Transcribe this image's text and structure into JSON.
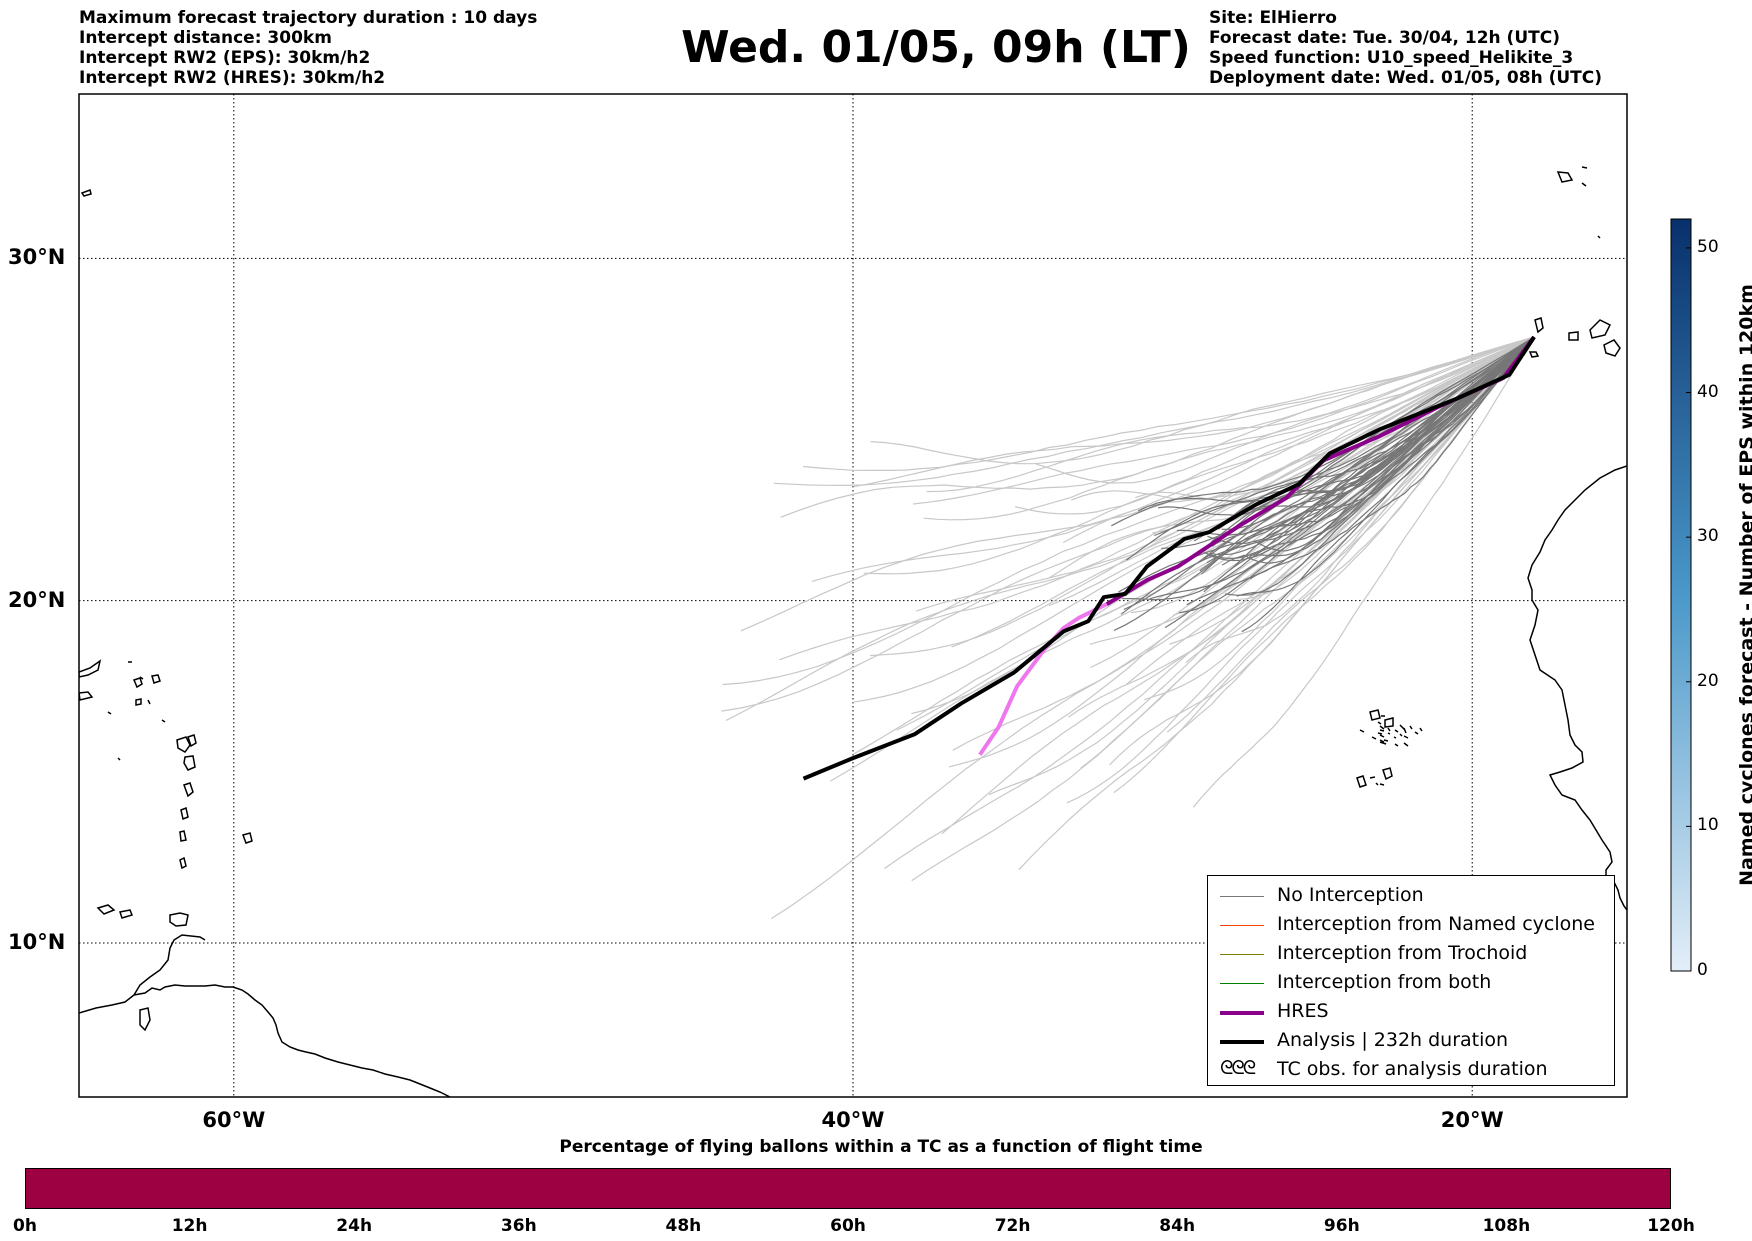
{
  "header": {
    "left": [
      "Maximum forecast trajectory duration : 10 days",
      "Intercept distance: 300km",
      "Intercept RW2 (EPS):  30km/h2",
      "Intercept RW2 (HRES): 30km/h2"
    ],
    "title": "Wed. 01/05, 09h (LT)",
    "right": [
      "Site: ElHierro",
      "Forecast date: Tue. 30/04, 12h (UTC)",
      "Speed function: U10_speed_Helikite_3",
      "Deployment date: Wed. 01/05, 08h (UTC)"
    ]
  },
  "map": {
    "lon_range": [
      -65,
      -15
    ],
    "lat_range": [
      5.5,
      34.8
    ],
    "lat_labels": [
      {
        "lat": 30,
        "label": "30°N"
      },
      {
        "lat": 20,
        "label": "20°N"
      },
      {
        "lat": 10,
        "label": "10°N"
      }
    ],
    "lon_labels": [
      {
        "lon": -60,
        "label": "60°W"
      },
      {
        "lon": -40,
        "label": "40°W"
      },
      {
        "lon": -20,
        "label": "20°W"
      }
    ],
    "launch_site": {
      "lon": -18.0,
      "lat": 27.7
    },
    "colors": {
      "no_interception": "#777777",
      "eps_light": "#c8c8c8",
      "hres": "#8b008b",
      "hres_light": "#ee77ee",
      "analysis": "#000000",
      "named_cyclone": "#ff4500",
      "trochoid": "#808000",
      "both": "#008000"
    },
    "analysis_track": [
      [
        -18.0,
        27.7
      ],
      [
        -18.8,
        26.6
      ],
      [
        -20.5,
        25.9
      ],
      [
        -23.0,
        25.0
      ],
      [
        -24.6,
        24.3
      ],
      [
        -25.6,
        23.4
      ],
      [
        -27.0,
        22.8
      ],
      [
        -28.5,
        22.0
      ],
      [
        -29.3,
        21.8
      ],
      [
        -30.5,
        21.0
      ],
      [
        -31.2,
        20.2
      ],
      [
        -31.9,
        20.1
      ],
      [
        -32.4,
        19.4
      ],
      [
        -33.2,
        19.1
      ],
      [
        -34.8,
        17.9
      ],
      [
        -36.5,
        17.0
      ],
      [
        -38.0,
        16.1
      ],
      [
        -40.0,
        15.4
      ],
      [
        -41.6,
        14.8
      ]
    ],
    "hres_track": [
      [
        -18.0,
        27.7
      ],
      [
        -19.0,
        26.5
      ],
      [
        -21.0,
        25.7
      ],
      [
        -23.0,
        24.8
      ],
      [
        -24.8,
        24.1
      ],
      [
        -26.0,
        23.0
      ],
      [
        -27.5,
        22.2
      ],
      [
        -29.5,
        21.0
      ],
      [
        -30.5,
        20.6
      ],
      [
        -31.8,
        19.9
      ],
      [
        -32.7,
        19.5
      ],
      [
        -33.2,
        19.2
      ],
      [
        -33.8,
        18.6
      ],
      [
        -34.7,
        17.5
      ],
      [
        -35.3,
        16.3
      ],
      [
        -35.9,
        15.5
      ]
    ]
  },
  "legend": [
    {
      "type": "line",
      "color": "#777777",
      "width": 1.2,
      "label": "No Interception"
    },
    {
      "type": "line",
      "color": "#ff4500",
      "width": 1.2,
      "label": "Interception from Named cyclone"
    },
    {
      "type": "line",
      "color": "#808000",
      "width": 1.2,
      "label": "Interception from Trochoid"
    },
    {
      "type": "line",
      "color": "#008000",
      "width": 1.2,
      "label": "Interception from both"
    },
    {
      "type": "line",
      "color": "#8b008b",
      "width": 4,
      "label": "HRES"
    },
    {
      "type": "line",
      "color": "#000000",
      "width": 4,
      "label": "Analysis | 232h duration"
    },
    {
      "type": "glyph",
      "glyph": "ᘓᘓᘓ",
      "label": "TC obs. for analysis duration"
    }
  ],
  "colorbar": {
    "title": "Named cyclones forecast - Number of EPS within 120km",
    "min": 0,
    "max": 52,
    "ticks": [
      0,
      10,
      20,
      30,
      40,
      50
    ],
    "color_low": "#e3eef8",
    "color_high": "#08306b"
  },
  "flight_bar": {
    "title": "Percentage of flying ballons within a TC as a function of flight time",
    "color": "#9e0142",
    "segments": 60,
    "ticks": [
      "0h",
      "12h",
      "24h",
      "36h",
      "48h",
      "60h",
      "72h",
      "84h",
      "96h",
      "108h",
      "120h"
    ]
  }
}
